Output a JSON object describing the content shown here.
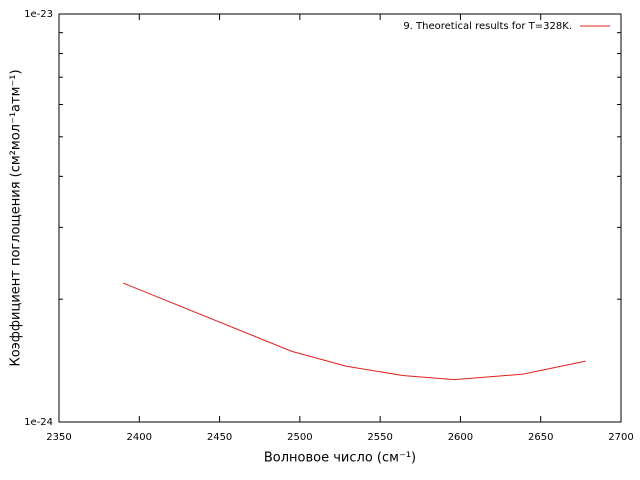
{
  "chart_data": {
    "type": "line",
    "xlabel": "Волновое число (см⁻¹)",
    "ylabel": "Коэффициент поглощения (см²мол⁻¹атм⁻¹)",
    "x": [
      2390,
      2495,
      2529,
      2564,
      2596,
      2639,
      2678
    ],
    "series": [
      {
        "name": "9. Theoretical results for T=328K.",
        "color": "#e0201b",
        "values": [
          2.19e-24,
          1.49e-24,
          1.37e-24,
          1.3e-24,
          1.27e-24,
          1.31e-24,
          1.41e-24
        ]
      }
    ],
    "xlim": [
      2350,
      2700
    ],
    "xticks": [
      2350,
      2400,
      2450,
      2500,
      2550,
      2600,
      2650,
      2700
    ],
    "ylim": [
      1e-24,
      1e-23
    ],
    "yticks": [
      {
        "value": 1e-24,
        "label": "1e-24"
      },
      {
        "value": 1e-23,
        "label": "1e-23"
      }
    ],
    "yminorticks": [
      2e-24,
      3e-24,
      4e-24,
      5e-24,
      6e-24,
      7e-24,
      8e-24,
      9e-24
    ],
    "log_scale_y": true,
    "grid": false,
    "legend": "top-right"
  }
}
